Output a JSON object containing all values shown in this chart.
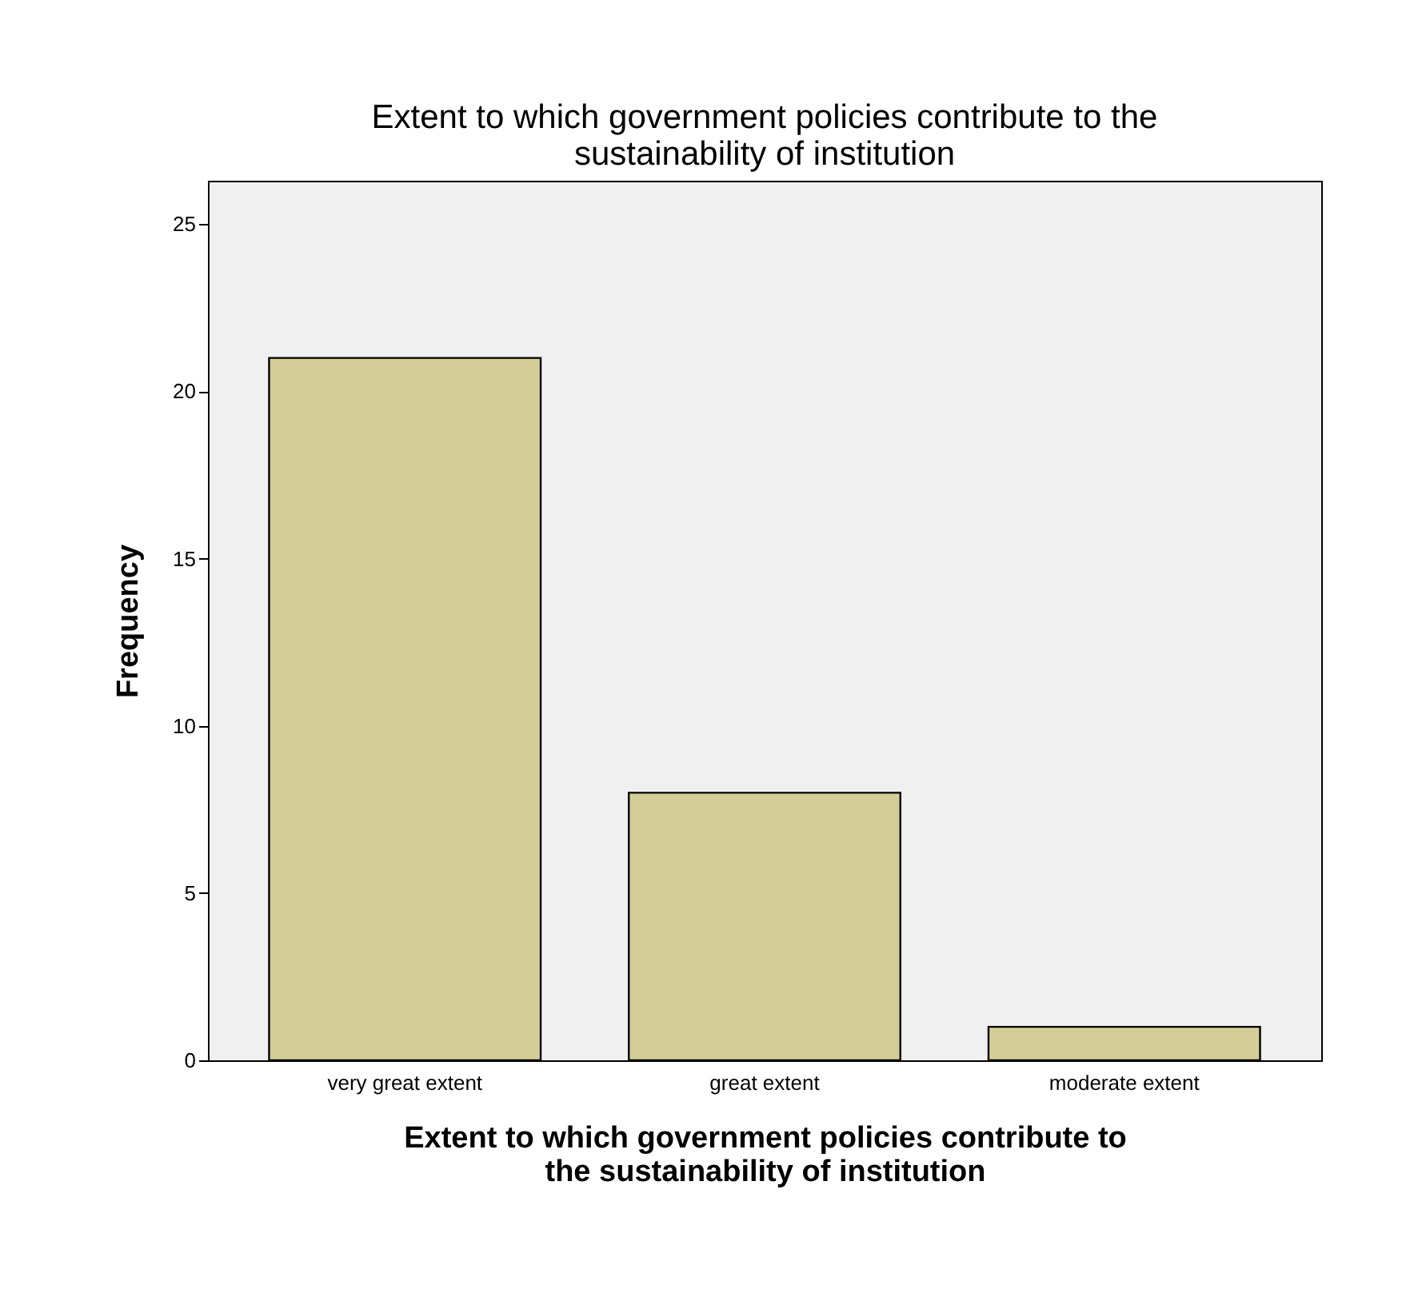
{
  "chart_data": {
    "type": "bar",
    "title": "Extent to which government policies contribute to the\nsustainability of institution",
    "xlabel": "Extent to which government policies contribute to\nthe sustainability of institution",
    "ylabel": "Frequency",
    "categories": [
      "very great extent",
      "great extent",
      "moderate extent"
    ],
    "values": [
      21,
      8,
      1
    ],
    "color": "#d3ce97",
    "ylim": [
      0,
      26.3
    ],
    "yticks": [
      0,
      5,
      10,
      15,
      20,
      25
    ],
    "grid": false
  }
}
